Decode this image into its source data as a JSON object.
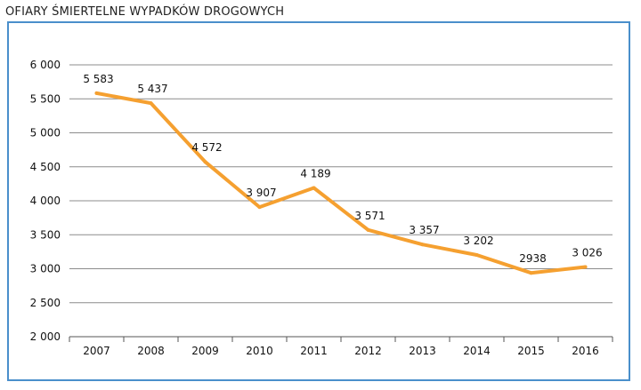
{
  "chart_data": {
    "type": "line",
    "title": "OFIARY ŚMIERTELNE WYPADKÓW DROGOWYCH",
    "categories": [
      "2007",
      "2008",
      "2009",
      "2010",
      "2011",
      "2012",
      "2013",
      "2014",
      "2015",
      "2016"
    ],
    "series": [
      {
        "values": [
          5583,
          5437,
          4572,
          3907,
          4189,
          3571,
          3357,
          3202,
          2938,
          3026
        ],
        "labels": [
          "5 583",
          "5 437",
          "4 572",
          "3 907",
          "4 189",
          "3 571",
          "3 357",
          "3 202",
          "2938",
          "3 026"
        ],
        "color": "#f5a030"
      }
    ],
    "yticks": [
      2000,
      2500,
      3000,
      3500,
      4000,
      4500,
      5000,
      5500,
      6000
    ],
    "ytick_labels": [
      "2 000",
      "2 500",
      "3 000",
      "3 500",
      "4 000",
      "4 500",
      "5 000",
      "5 500",
      "6 000"
    ],
    "ylim": [
      2000,
      6000
    ],
    "grid": true,
    "legend": "none",
    "xlabel": "",
    "ylabel": "",
    "colors": {
      "frame": "#4a8fcb",
      "grid": "#8c8c8c",
      "axis": "#555555"
    }
  }
}
